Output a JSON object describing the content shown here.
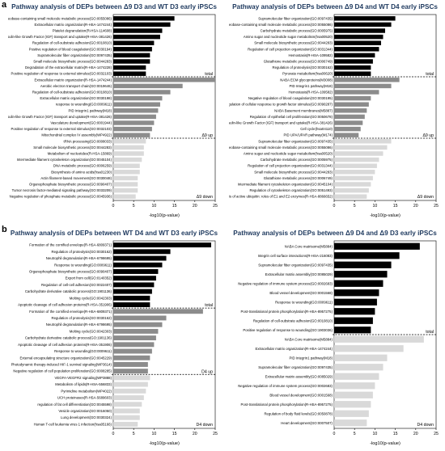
{
  "panel_letters": {
    "a": "a",
    "b": "b"
  },
  "colors": {
    "total": "#000000",
    "up": "#8c8c8c",
    "down": "#d9d9d9"
  },
  "chart_data": [
    {
      "type": "bar",
      "orientation": "horizontal",
      "title": "Pathway analysis of DEPs between Δ9 D3 and WT D3 early iPSCs",
      "xlabel": "-log10(p-value)",
      "xlim": [
        0,
        25
      ],
      "xticks": [
        "0",
        "5",
        "10",
        "15",
        "20",
        "25"
      ],
      "groups": [
        {
          "name": "total",
          "color": "total",
          "categories": [
            "Nucleobase-containing small molecule metabolic process(GO:0055086)",
            "Extracellular matrix organization(R-HSA-1474244)",
            "Platelet degranulation(R-HSA-114608)",
            "Regulation of Insulin-like Growth Factor (IGF) transport and uptake(R-HSA-381426)",
            "Regulation of cell-substrate adhesion(GO:0010810)",
            "Positive regulation of blood coagulation(GO:0030194)",
            "Supramolecular fiber organization(GO:0097435)",
            "Small molecule biosynthetic process(GO:0044283)",
            "Degradation of the extracellular matrix(R-HSA-1474228)",
            "Positive regulation of response to external stimulus(GO:0032103)"
          ],
          "values": [
            15,
            14,
            12,
            11.5,
            10,
            9.5,
            9,
            9,
            8,
            8
          ]
        },
        {
          "name": "Δ9 up",
          "color": "up",
          "categories": [
            "Extracellular matrix organization(R-HSA-1474244)",
            "Aerobic electron transport chain(GO:0019646)",
            "Regulation of cell-substrate adhesion(GO:0010810)",
            "Extracellular matrix organization(GO:0030198)",
            "response to wounding(GO:0009611)",
            "PID Integrin1 pathway(M18)",
            "Regulation of Insulin-like Growth Factor (IGF) transport and uptake(R-HSA-381426)",
            "Vasculature development(GO:0001944)",
            "Positive regulation of response to external stimulus(GO:0032103)",
            "Mitochondrial complex IV assembly(WP4922)"
          ],
          "values": [
            25,
            17,
            14,
            12,
            11.5,
            11,
            10.5,
            10,
            9.5,
            9
          ]
        },
        {
          "name": "Δ9 down",
          "color": "down",
          "categories": [
            "tRNA processing(GO:0008033)",
            "Small molecule biosynthetic process(GO:0044283)",
            "Metabolism of nucleotides(R-HSA-15869)",
            "Intermediate filament cytoskeleton organization(GO:0045104)",
            "DNA metabolic process(GO:0006259)",
            "Biosynthesis of amino acids(hsa01230)",
            "Actin filament-based movement(GO:0030048)",
            "Organophosphate biosynthetic process(GO:0090407)",
            "Tumor necrosis factor-mediated signaling pathway(GO:0033209)",
            "Negative regulation of phosphate metabolic process(GO:0045936)"
          ],
          "values": [
            8,
            7.5,
            7.5,
            7,
            6.5,
            6.5,
            6,
            6,
            6,
            5.5
          ]
        }
      ]
    },
    {
      "type": "bar",
      "orientation": "horizontal",
      "title": "Pathway analysis of DEPs between Δ9 D4 and WT D4 early iPSCs",
      "xlabel": "-log10(p-value)",
      "xlim": [
        0,
        25
      ],
      "xticks": [
        "0",
        "5",
        "10",
        "15",
        "20",
        "25"
      ],
      "groups": [
        {
          "name": "total",
          "color": "total",
          "categories": [
            "Supramolecular fiber organization(GO:0097435)",
            "Nucleobase-containing small molecule metabolic process(GO:0055086)",
            "Carbohydrate metabolic process(GO:0005975)",
            "Amino sugar and nucleotide sugar metabolism(hsa00520)",
            "Small molecule biosynthetic process(GO:0044283)",
            "Regulation of cell projection organization(GO:0031344)",
            "Hemostasis(R-HSA-109582)",
            "Glutathione metabolic process(GO:0006749)",
            "Regulation of proteolysis(GO:0030162)",
            "Pyruvate metabolism(hsa00620)"
          ],
          "values": [
            15,
            14,
            12.5,
            12,
            11.5,
            11,
            10,
            9.5,
            9,
            9
          ]
        },
        {
          "name": "Δ9 up",
          "color": "up",
          "categories": [
            "NABA ECM glycoproteins(M3008)",
            "PID Integrin1 pathway(M18)",
            "Hemostasis(R-HSA-109582)",
            "Negative regulation of blood coagulation(GO:0030195)",
            "Regulation of cellular response to growth factor stimulus(GO:0090287)",
            "NABA Basement membranes(M5887)",
            "Regulation of epithelial cell proliferation(GO:0050678)",
            "Regulation of Insulin-like Growth Factor (IGF) transport and uptake(R-HSA-381426)",
            "Cell cycle(hsa04110)",
            "PID UPA/UPAR pathway(M174)"
          ],
          "values": [
            16,
            14,
            11,
            9,
            8.5,
            8,
            7.5,
            7,
            6.5,
            6
          ]
        },
        {
          "name": "Δ9 down",
          "color": "down",
          "categories": [
            "Supramolecular fiber organization(GO:0097435)",
            "Nucleobase-containing small molecule metabolic process(GO:0055086)",
            "Amino sugar and nucleotide sugar metabolism(hsa00520)",
            "Carbohydrate metabolic process(GO:0005975)",
            "Regulation of cell projection organization(GO:0031344)",
            "Small molecule biosynthetic process(GO:0044283)",
            "Glutathione metabolic process(GO:0006749)",
            "Intermediate filament cytoskeleton organization(GO:0045104)",
            "Regulation of cytoskeleton organization(GO:0051493)",
            "Synthesis of active ubiquitin: roles of E1 and E2 enzymes(R-HSA-8866652)"
          ],
          "values": [
            14,
            13,
            12,
            11,
            10.5,
            10,
            9.5,
            9,
            8.5,
            8
          ]
        }
      ]
    },
    {
      "type": "bar",
      "orientation": "horizontal",
      "title": "Pathway analysis of DEPs between WT D4 and WT D3 early iPSCs",
      "xlabel": "-log10(p-value)",
      "xlim": [
        0,
        25
      ],
      "xticks": [
        "0",
        "5",
        "10",
        "15",
        "20",
        "25"
      ],
      "groups": [
        {
          "name": "total",
          "color": "total",
          "categories": [
            "Formation of the cornified envelope(R-HSA-6809371)",
            "Regulation of proteolysis(GO:0030162)",
            "Neutrophil degranulation(R-HSA-6798695)",
            "Response to wounding(GO:0009611)",
            "Organophosphate biosynthetic process(GO:0090407)",
            "Export from cell(GO:0140352)",
            "Regulation of cell-cell adhesion(GO:0022407)",
            "Carbohydrate derivative catabolic process(GO:1901136)",
            "Molting cycle(GO:0042303)",
            "Apoptotic cleavage of cell adhesion proteins(R-HSA-351906)"
          ],
          "values": [
            24,
            14,
            13,
            12,
            11,
            10.5,
            10,
            9.5,
            9,
            9
          ]
        },
        {
          "name": "D4 up",
          "color": "up",
          "categories": [
            "Formation of the cornified envelope(R-HSA-6809371)",
            "Regulation of proteolysis(GO:0030162)",
            "Neutrophil degranulation(R-HSA-6798695)",
            "Molting cycle(GO:0042303)",
            "Carbohydrate derivative catabolic process(GO:1901136)",
            "Apoptotic cleavage of cell adhesion proteins(R-HSA-351906)",
            "Response to wounding(GO:0009611)",
            "External encapsulating structure organization(GO:0045229)",
            "Photodynamic therapy-induced HIF-1 survival signaling(WP3614)",
            "Negative regulation of cell population proliferation(GO:0008285)"
          ],
          "values": [
            22,
            13,
            12,
            11,
            10.5,
            10,
            9.5,
            9,
            8.5,
            8.5
          ]
        },
        {
          "name": "D4 down",
          "color": "down",
          "categories": [
            "VEGFA-VEGFR2 signaling(WP3888)",
            "Metabolism of lipids(R-HSA-556833)",
            "Pyrimidine metabolism(WP4022)",
            "UCH proteinases(R-HSA-5689603)",
            "regulation of fat cell differentiation(GO:0045598)",
            "Vesicle organization(GO:0016050)",
            "Lung development(GO:0030324)",
            "Human T-cell leukemia virus 1 infection(hsa05166)"
          ],
          "values": [
            9,
            8.5,
            8,
            7.5,
            7,
            6.5,
            6.5,
            6
          ]
        }
      ]
    },
    {
      "type": "bar",
      "orientation": "horizontal",
      "title": "Pathway analysis of DEPs between Δ9 D4 and Δ9 D3 early iPSCs",
      "xlabel": "-log10(p-value)",
      "xlim": [
        0,
        25
      ],
      "xticks": [
        "0",
        "5",
        "10",
        "15",
        "20",
        "25"
      ],
      "groups": [
        {
          "name": "total",
          "color": "total",
          "categories": [
            "NABA Core matrisome(M5884)",
            "Integrin cell surface interactions(R-HSA-216083)",
            "Supramolecular fiber organization(GO:0097435)",
            "Extracellular matrix assembly(GO:0085029)",
            "Negative regulation of immune system process(GO:0002683)",
            "Blood vessel development(GO:0001568)",
            "Response to wounding(GO:0009611)",
            "Post-translational protein phosphorylation(R-HSA-8957275)",
            "Regulation of cell-substrate adhesion(GO:0010810)",
            "Positive regulation of response to wounding(GO:1903036)"
          ],
          "values": [
            21,
            16,
            14,
            13,
            12,
            11,
            10.5,
            10,
            9.5,
            9
          ]
        },
        {
          "name": "D4 down",
          "color": "down",
          "categories": [
            "NABA Core matrisome(M5884)",
            "Extracellular matrix organization(R-HSA-1474244)",
            "PID Integrin1 pathway(M18)",
            "Supramolecular fiber organization(GO:0097435)",
            "Extracellular matrix assembly(GO:0085029)",
            "Negative regulation of immune system process(GO:0002683)",
            "Blood vessel development(GO:0001568)",
            "Post-translational protein phosphorylation(R-HSA-8957275)",
            "Regulation of body fluid levels(GO:0050878)",
            "Heart development(GO:0007507)"
          ],
          "values": [
            22,
            17,
            13,
            12,
            11,
            10,
            9.5,
            9,
            8.5,
            8
          ]
        }
      ]
    }
  ]
}
